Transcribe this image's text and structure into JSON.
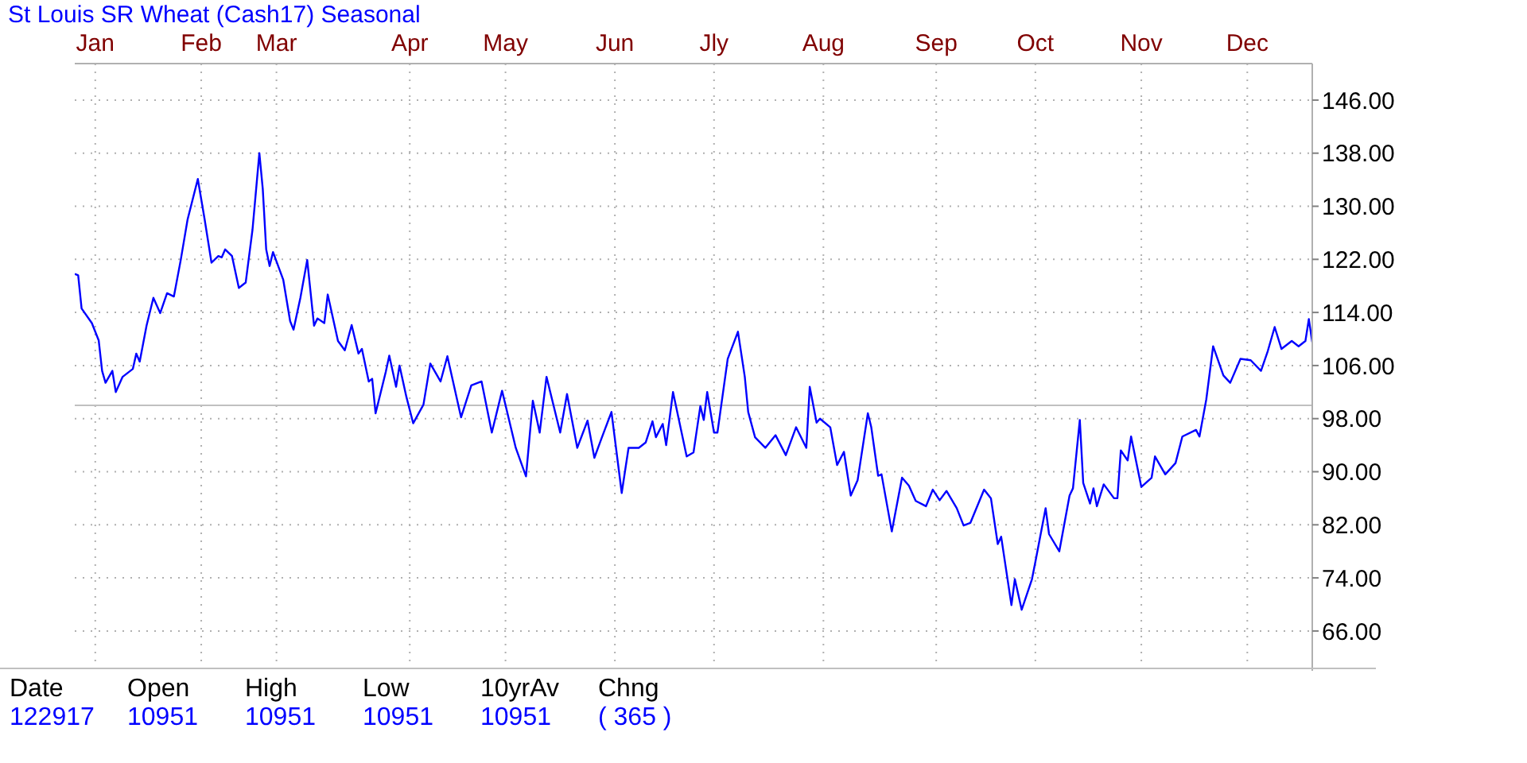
{
  "chart_data": {
    "type": "line",
    "title": "St Louis SR Wheat (Cash17) Seasonal",
    "x": [
      "--01-01",
      "--01-02",
      "--01-03",
      "--01-06",
      "--01-08",
      "--01-09",
      "--01-10",
      "--01-12",
      "--01-13",
      "--01-15",
      "--01-18",
      "--01-19",
      "--01-20",
      "--01-22",
      "--01-24",
      "--01-26",
      "--01-28",
      "--01-30",
      "--02-01",
      "--02-03",
      "--02-06",
      "--02-08",
      "--02-10",
      "--02-12",
      "--02-13",
      "--02-14",
      "--02-16",
      "--02-18",
      "--02-20",
      "--02-22",
      "--02-24",
      "--02-25",
      "--02-26",
      "--02-27",
      "--02-28",
      "--03-03",
      "--03-05",
      "--03-06",
      "--03-08",
      "--03-10",
      "--03-12",
      "--03-13",
      "--03-15",
      "--03-16",
      "--03-19",
      "--03-21",
      "--03-23",
      "--03-25",
      "--03-26",
      "--03-28",
      "--03-29",
      "--03-30",
      "--04-02",
      "--04-03",
      "--04-05",
      "--04-06",
      "--04-08",
      "--04-10",
      "--04-13",
      "--04-15",
      "--04-18",
      "--04-20",
      "--04-24",
      "--04-27",
      "--04-30",
      "--05-03",
      "--05-06",
      "--05-10",
      "--05-13",
      "--05-15",
      "--05-17",
      "--05-19",
      "--05-23",
      "--05-25",
      "--05-28",
      "--05-31",
      "--06-02",
      "--06-04",
      "--06-07",
      "--06-10",
      "--06-12",
      "--06-15",
      "--06-17",
      "--06-19",
      "--06-20",
      "--06-22",
      "--06-23",
      "--06-25",
      "--06-29",
      "--07-01",
      "--07-03",
      "--07-04",
      "--07-05",
      "--07-07",
      "--07-08",
      "--07-11",
      "--07-14",
      "--07-16",
      "--07-17",
      "--07-19",
      "--07-22",
      "--07-25",
      "--07-28",
      "--07-31",
      "--08-03",
      "--08-04",
      "--08-06",
      "--08-07",
      "--08-10",
      "--08-12",
      "--08-14",
      "--08-16",
      "--08-18",
      "--08-21",
      "--08-22",
      "--08-24",
      "--08-25",
      "--08-28",
      "--08-31",
      "--09-02",
      "--09-04",
      "--09-07",
      "--09-09",
      "--09-11",
      "--09-13",
      "--09-16",
      "--09-18",
      "--09-20",
      "--09-24",
      "--09-26",
      "--09-28",
      "--09-29",
      "--10-02",
      "--10-03",
      "--10-05",
      "--10-08",
      "--10-09",
      "--10-12",
      "--10-13",
      "--10-16",
      "--10-19",
      "--10-20",
      "--10-22",
      "--10-23",
      "--10-25",
      "--10-26",
      "--10-27",
      "--10-29",
      "--11-01",
      "--11-02",
      "--11-03",
      "--11-05",
      "--11-06",
      "--11-09",
      "--11-12",
      "--11-13",
      "--11-16",
      "--11-19",
      "--11-21",
      "--11-25",
      "--11-26",
      "--11-28",
      "--11-30",
      "--12-03",
      "--12-05",
      "--12-08",
      "--12-11",
      "--12-14",
      "--12-16",
      "--12-18",
      "--12-20",
      "--12-23",
      "--12-25",
      "--12-27",
      "--12-28",
      "--12-29"
    ],
    "series": [
      {
        "color": "#0000ff",
        "values": [
          119.8,
          119.6,
          114.6,
          112.4,
          109.8,
          105.2,
          103.4,
          105.2,
          102.0,
          104.3,
          105.5,
          107.8,
          106.6,
          112.0,
          116.2,
          113.9,
          116.9,
          116.4,
          121.9,
          128.0,
          134.1,
          128.0,
          121.5,
          122.5,
          122.3,
          123.5,
          122.5,
          117.7,
          118.5,
          126.5,
          138.0,
          132.6,
          123.5,
          121.0,
          123.1,
          118.9,
          112.7,
          111.4,
          116.2,
          121.9,
          112.0,
          113.1,
          112.4,
          116.7,
          109.7,
          108.3,
          112.1,
          107.8,
          108.5,
          103.6,
          104.0,
          98.8,
          105.1,
          107.5,
          102.8,
          106.0,
          101.3,
          97.3,
          100.1,
          106.3,
          103.6,
          107.4,
          98.2,
          103.0,
          103.6,
          95.9,
          102.2,
          93.6,
          89.3,
          100.7,
          95.9,
          104.3,
          95.9,
          101.7,
          93.6,
          97.7,
          92.1,
          94.9,
          99.0,
          86.8,
          93.6,
          93.6,
          94.4,
          97.6,
          95.2,
          97.2,
          94.0,
          102.0,
          92.3,
          92.9,
          99.9,
          97.8,
          102.0,
          95.9,
          95.9,
          107.0,
          111.1,
          104.3,
          99.0,
          95.2,
          93.6,
          95.5,
          92.5,
          96.7,
          93.6,
          102.8,
          97.4,
          98.0,
          96.7,
          91.0,
          93.0,
          86.4,
          88.7,
          98.8,
          96.7,
          89.4,
          89.6,
          81.0,
          89.1,
          87.9,
          85.6,
          84.8,
          87.3,
          85.7,
          87.1,
          84.5,
          81.9,
          82.3,
          87.3,
          86.0,
          79.1,
          80.2,
          69.9,
          73.8,
          69.2,
          73.8,
          76.4,
          84.5,
          80.6,
          78.0,
          86.4,
          87.5,
          97.8,
          88.3,
          85.2,
          87.5,
          84.8,
          88.1,
          86.0,
          86.0,
          93.2,
          91.7,
          95.3,
          87.7,
          89.1,
          92.3,
          89.6,
          91.3,
          95.3,
          96.3,
          95.3,
          100.9,
          108.9,
          104.5,
          103.4,
          107.0,
          106.8,
          105.2,
          108.2,
          111.8,
          108.5,
          109.7,
          108.9,
          109.7,
          113.0,
          109.5
        ]
      }
    ],
    "xlim": [
      "--01-01",
      "--12-29"
    ],
    "xticks": [
      {
        "value": "--01-07",
        "label": "Jan"
      },
      {
        "value": "--02-07",
        "label": "Feb"
      },
      {
        "value": "--03-01",
        "label": "Mar"
      },
      {
        "value": "--04-09",
        "label": "Apr"
      },
      {
        "value": "--05-07",
        "label": "May"
      },
      {
        "value": "--06-08",
        "label": "Jun"
      },
      {
        "value": "--07-07",
        "label": "Jly"
      },
      {
        "value": "--08-08",
        "label": "Aug"
      },
      {
        "value": "--09-10",
        "label": "Sep"
      },
      {
        "value": "--10-09",
        "label": "Oct"
      },
      {
        "value": "--11-09",
        "label": "Nov"
      },
      {
        "value": "--12-10",
        "label": "Dec"
      }
    ],
    "ylim": [
      60,
      151.5
    ],
    "yticks": [
      {
        "value": 66,
        "label": "66.00"
      },
      {
        "value": 74,
        "label": "74.00"
      },
      {
        "value": 82,
        "label": "82.00"
      },
      {
        "value": 90,
        "label": "90.00"
      },
      {
        "value": 98,
        "label": "98.00"
      },
      {
        "value": 106,
        "label": "106.00"
      },
      {
        "value": 114,
        "label": "114.00"
      },
      {
        "value": 122,
        "label": "122.00"
      },
      {
        "value": 130,
        "label": "130.00"
      },
      {
        "value": 138,
        "label": "138.00"
      },
      {
        "value": 146,
        "label": "146.00"
      }
    ],
    "ref_lines": [
      {
        "axis": "y",
        "value": 100,
        "color": "#c0c0c0"
      }
    ],
    "grid": true,
    "marker": "none",
    "line_style": "solid",
    "annotations": [
      "Date",
      "Open",
      "High",
      "Low",
      "10yrAv",
      "Chng",
      "122917",
      "10951",
      "10951",
      "10951",
      "10951",
      "( 365 )"
    ]
  }
}
